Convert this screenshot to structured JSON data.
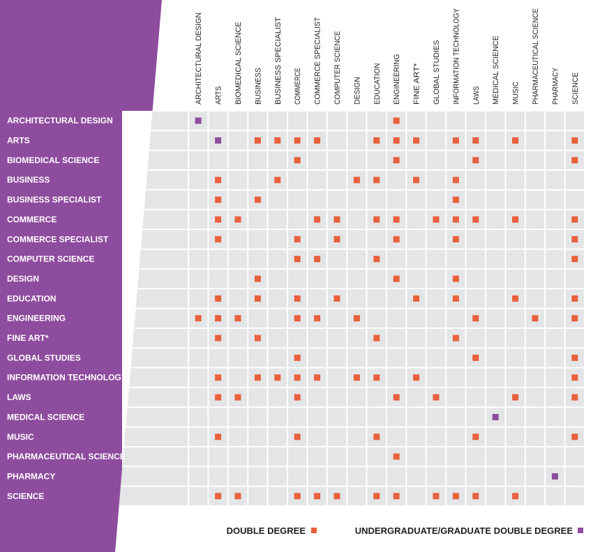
{
  "colors": {
    "purple": "#8e4c9e",
    "orange": "#e8603c",
    "cell": "#e4e5e6",
    "grid": "#ffffff"
  },
  "row_labels": [
    "ARCHITECTURAL DESIGN",
    "ARTS",
    "BIOMEDICAL SCIENCE",
    "BUSINESS",
    "BUSINESS SPECIALIST",
    "COMMERCE",
    "COMMERCE SPECIALIST",
    "COMPUTER SCIENCE",
    "DESIGN",
    "EDUCATION",
    "ENGINEERING",
    "FINE ART*",
    "GLOBAL STUDIES",
    "INFORMATION TECHNOLOGY",
    "LAWS",
    "MEDICAL SCIENCE",
    "MUSIC",
    "PHARMACEUTICAL SCIENCE",
    "PHARMACY",
    "SCIENCE"
  ],
  "column_labels": [
    "ARCHITECTURAL DESIGN",
    "ARTS",
    "BIOMEDICAL SCIENCE",
    "BUSINESS",
    "BUSINESS SPECIALIST",
    "COMMERCE",
    "COMMERCE SPECIALIST",
    "COMPUTER SCIENCE",
    "DESIGN",
    "EDUCATION",
    "ENGINEERING",
    "FINE ART*",
    "GLOBAL STUDIES",
    "INFORMATION TECHNOLOGY",
    "LAWS",
    "MEDICAL SCIENCE",
    "MUSIC",
    "PHARMACEUTICAL SCIENCE",
    "PHARMACY",
    "SCIENCE"
  ],
  "double_degree": [
    [
      10
    ],
    [
      3,
      4,
      5,
      6,
      9,
      10,
      11,
      13,
      14,
      16,
      19
    ],
    [
      5,
      10,
      14,
      19
    ],
    [
      1,
      4,
      8,
      9,
      11,
      13
    ],
    [
      1,
      3,
      13
    ],
    [
      1,
      2,
      6,
      7,
      9,
      10,
      12,
      13,
      14,
      16,
      19
    ],
    [
      1,
      5,
      7,
      10,
      13,
      19
    ],
    [
      5,
      6,
      9,
      19
    ],
    [
      3,
      10,
      13
    ],
    [
      1,
      3,
      5,
      7,
      11,
      13,
      16,
      19
    ],
    [
      0,
      1,
      2,
      5,
      6,
      8,
      14,
      17,
      19
    ],
    [
      1,
      3,
      9,
      13
    ],
    [
      5,
      14,
      19
    ],
    [
      1,
      3,
      4,
      5,
      6,
      8,
      9,
      11,
      19
    ],
    [
      1,
      2,
      5,
      10,
      12,
      16,
      19
    ],
    [],
    [
      1,
      5,
      9,
      14,
      19
    ],
    [
      10
    ],
    [],
    [
      1,
      2,
      5,
      6,
      7,
      9,
      10,
      12,
      13,
      14,
      16
    ]
  ],
  "ug_pg_double_degree": [
    [
      0,
      0
    ],
    [
      1,
      1
    ],
    [
      15,
      15
    ],
    [
      18,
      18
    ]
  ],
  "legend": {
    "double_degree": "DOUBLE DEGREE",
    "ug_pg_double_degree": "UNDERGRADUATE/GRADUATE DOUBLE DEGREE"
  }
}
